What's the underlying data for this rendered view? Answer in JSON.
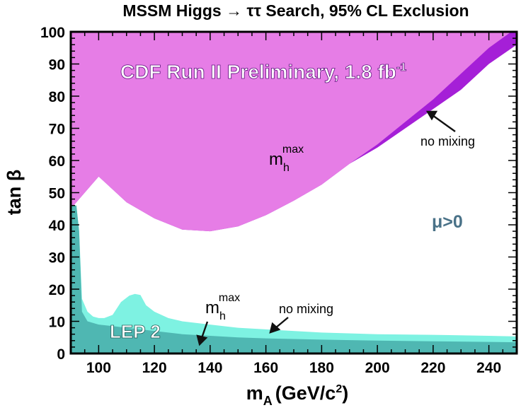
{
  "chart_data": {
    "type": "area",
    "title": "MSSM Higgs → ττ Search, 95% CL Exclusion",
    "xlabel": "m",
    "xlabel_sub": "A",
    "xlabel_unit": "(GeV/c",
    "xlabel_sup": "2",
    "xlabel_close": ")",
    "ylabel": "tan β",
    "xlim": [
      90,
      250
    ],
    "ylim": [
      0,
      100
    ],
    "xticks": [
      100,
      120,
      140,
      160,
      180,
      200,
      220,
      240
    ],
    "yticks": [
      0,
      10,
      20,
      30,
      40,
      50,
      60,
      70,
      80,
      90,
      100
    ],
    "grid": false,
    "colors": {
      "cdf_mhmax": "#a51fd7",
      "cdf_nomixing": "#e67de6",
      "lep_nomixing": "#7ef2e2",
      "lep_mhmax": "#4fb7b2",
      "arrow": "#111111",
      "mu_label": "#4a7288"
    },
    "series": [
      {
        "name": "m_h^max",
        "experiment": "CDF",
        "region": "above",
        "x": [
          90,
          100,
          110,
          120,
          130,
          140,
          150,
          160,
          170,
          180,
          190,
          200,
          210,
          220,
          230,
          240,
          248,
          250
        ],
        "y": [
          45,
          55,
          47,
          42,
          38.5,
          38,
          39.5,
          43,
          47.5,
          52.5,
          59,
          65,
          72,
          79,
          87,
          95,
          100,
          100
        ]
      },
      {
        "name": "no mixing",
        "experiment": "CDF",
        "region": "above",
        "x": [
          90,
          100,
          110,
          120,
          130,
          140,
          150,
          160,
          170,
          180,
          190,
          200,
          210,
          220,
          230,
          240,
          250
        ],
        "y": [
          45,
          55,
          47,
          42,
          38.5,
          38,
          39.5,
          43,
          47.5,
          52.5,
          59,
          64,
          70,
          76,
          82,
          90,
          96
        ]
      },
      {
        "name": "no mixing",
        "experiment": "LEP 2",
        "region": "below",
        "x": [
          90,
          92,
          93,
          94,
          96,
          98,
          100,
          102,
          105,
          108,
          111,
          113,
          115,
          117,
          120,
          125,
          130,
          140,
          150,
          160,
          180,
          200,
          220,
          240,
          250
        ],
        "y": [
          46,
          46,
          38,
          17,
          13,
          11.5,
          11,
          11,
          12,
          16,
          18,
          18.5,
          18.2,
          15,
          13,
          11,
          10,
          9,
          8,
          7.5,
          6.5,
          6,
          5.8,
          5.5,
          5.3
        ]
      },
      {
        "name": "m_h^max",
        "experiment": "LEP 2",
        "region": "below",
        "x": [
          90,
          92,
          93,
          94,
          96,
          100,
          105,
          110,
          120,
          130,
          140,
          150,
          160,
          180,
          200,
          220,
          240,
          250
        ],
        "y": [
          46,
          46,
          38,
          13,
          10,
          9,
          8.5,
          8,
          7,
          6,
          5.5,
          5,
          4.7,
          4.3,
          4,
          3.8,
          3.6,
          3.5
        ]
      }
    ],
    "annotations": {
      "cdf_label": "CDF Run II Preliminary, 1.8 fb",
      "cdf_label_sup": "-1",
      "cdf_mhmax_main": "m",
      "cdf_mhmax_sub": "h",
      "cdf_mhmax_sup": "max",
      "cdf_nomix": "no mixing",
      "mu": "μ>0",
      "lep_label": "LEP 2",
      "lep_mhmax_main": "m",
      "lep_mhmax_sub": "h",
      "lep_mhmax_sup": "max",
      "lep_nomix": "no mixing"
    }
  }
}
